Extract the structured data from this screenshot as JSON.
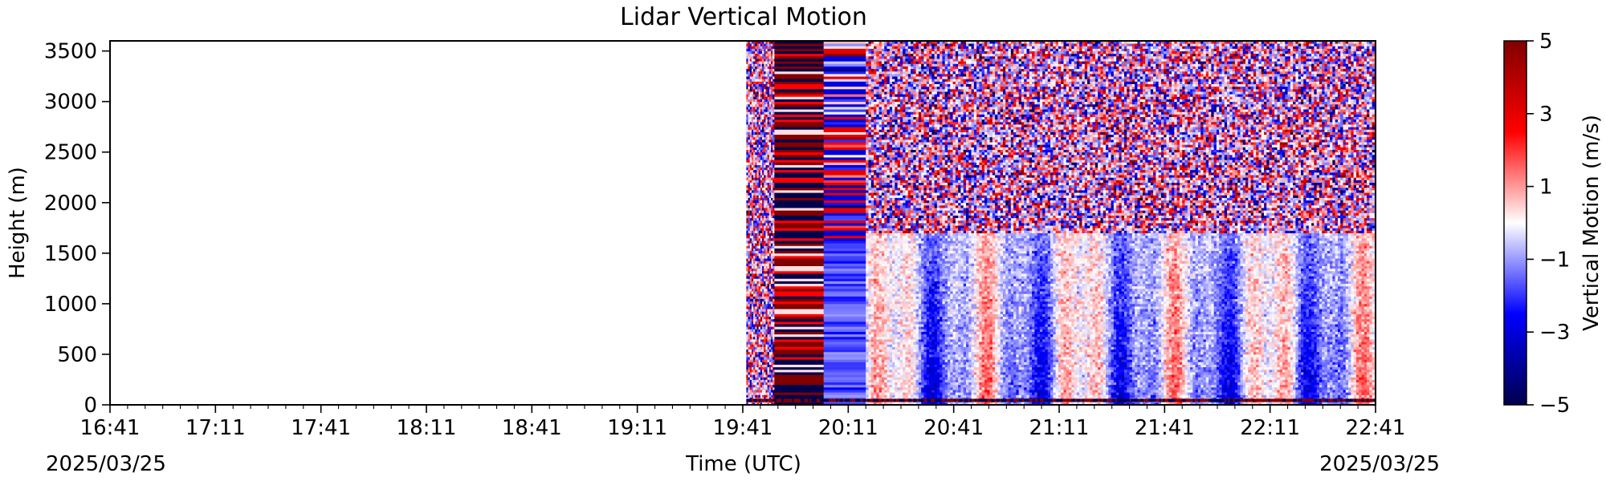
{
  "chart_data": {
    "type": "heatmap",
    "title": "Lidar Vertical Motion",
    "xlabel": "Time (UTC)",
    "ylabel": "Height (m)",
    "xlim": [
      "16:41",
      "22:41"
    ],
    "ylim": [
      0,
      3600
    ],
    "x_ticks": [
      "16:41",
      "17:11",
      "17:41",
      "18:11",
      "18:41",
      "19:11",
      "19:41",
      "20:11",
      "20:41",
      "21:11",
      "21:41",
      "22:11",
      "22:41"
    ],
    "y_ticks": [
      0,
      500,
      1000,
      1500,
      2000,
      2500,
      3000,
      3500
    ],
    "date_left": "2025/03/25",
    "date_right": "2025/03/25",
    "data_start": "19:42",
    "data_end": "22:41",
    "segments": [
      {
        "start": "19:42",
        "end": "19:50",
        "pattern": "noise"
      },
      {
        "start": "19:50",
        "end": "20:04",
        "pattern": "strong-bands"
      },
      {
        "start": "20:04",
        "end": "20:16",
        "pattern": "mixed-bands"
      },
      {
        "start": "20:16",
        "end": "22:41",
        "pattern": "boundary-layer",
        "boundary_layer_top_m": 1700
      }
    ],
    "colorbar": {
      "label": "Vertical Motion (m/s)",
      "vmin": -5,
      "vmax": 5,
      "ticks": [
        5,
        3,
        1,
        -1,
        -3,
        -5
      ],
      "tick_labels": [
        "5",
        "3",
        "1",
        "−1",
        "−3",
        "−5"
      ],
      "colormap": "seismic",
      "colors": [
        "#00004c",
        "#0000ff",
        "#ffffff",
        "#ff0000",
        "#800000"
      ]
    }
  }
}
